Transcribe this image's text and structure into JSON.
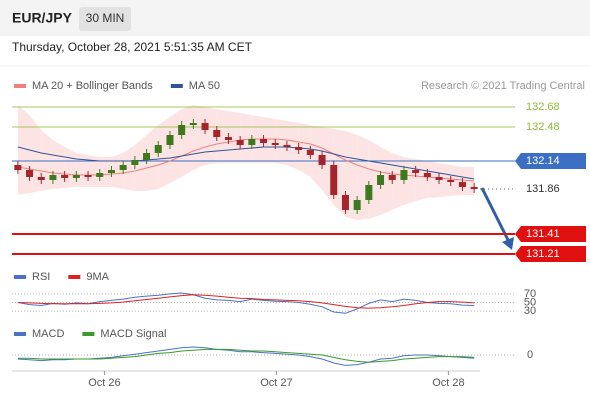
{
  "header": {
    "symbol": "EUR/JPY",
    "timeframe": "30 MIN",
    "datetime": "Thursday, October 28, 2021 5:51:35 AM CET",
    "source": "Research © 2021 Trading Central"
  },
  "chart_data": [
    {
      "type": "candlestick",
      "up_color": "#3d7a1e",
      "down_color": "#a4262c",
      "open": [
        132.1,
        132.05,
        131.98,
        131.95,
        132.0,
        131.97,
        132.0,
        131.98,
        132.02,
        132.05,
        132.1,
        132.15,
        132.22,
        132.3,
        132.4,
        132.5,
        132.52,
        132.45,
        132.38,
        132.35,
        132.3,
        132.36,
        132.32,
        132.3,
        132.28,
        132.25,
        132.2,
        132.1,
        131.8,
        131.65,
        131.75,
        131.9,
        132.0,
        131.95,
        132.05,
        132.02,
        131.98,
        131.95,
        131.93,
        131.88
      ],
      "high": [
        132.14,
        132.09,
        132.02,
        132.04,
        132.04,
        132.04,
        132.04,
        132.06,
        132.09,
        132.14,
        132.19,
        132.26,
        132.34,
        132.44,
        132.54,
        132.56,
        132.56,
        132.49,
        132.42,
        132.39,
        132.4,
        132.4,
        132.36,
        132.34,
        132.32,
        132.29,
        132.24,
        132.14,
        131.84,
        131.79,
        131.94,
        132.04,
        132.04,
        132.09,
        132.09,
        132.06,
        132.02,
        131.99,
        131.97,
        131.92
      ],
      "low": [
        132.01,
        131.94,
        131.91,
        131.91,
        131.93,
        131.93,
        131.94,
        131.94,
        131.98,
        132.01,
        132.06,
        132.11,
        132.18,
        132.26,
        132.36,
        132.46,
        132.41,
        132.34,
        132.31,
        132.26,
        132.26,
        132.28,
        132.26,
        132.24,
        132.21,
        132.16,
        132.06,
        131.76,
        131.61,
        131.61,
        131.71,
        131.86,
        131.91,
        131.91,
        131.98,
        131.94,
        131.91,
        131.89,
        131.84,
        131.82
      ],
      "close": [
        132.05,
        131.98,
        131.95,
        132.0,
        131.97,
        132.0,
        131.98,
        132.02,
        132.05,
        132.1,
        132.15,
        132.22,
        132.3,
        132.4,
        132.5,
        132.52,
        132.45,
        132.38,
        132.35,
        132.3,
        132.36,
        132.32,
        132.3,
        132.28,
        132.25,
        132.2,
        132.1,
        131.8,
        131.65,
        131.75,
        131.9,
        132.0,
        131.95,
        132.05,
        132.02,
        131.98,
        131.95,
        131.93,
        131.88,
        131.86
      ],
      "series": [
        {
          "name": "MA 20 + Bollinger Bands",
          "color": "#f08080",
          "band_color": "#fcd9d9",
          "values": [
            132.08,
            132.06,
            132.04,
            132.02,
            132.01,
            132.0,
            132.0,
            132.0,
            132.01,
            132.02,
            132.04,
            132.07,
            132.1,
            132.14,
            132.19,
            132.24,
            132.28,
            132.31,
            132.33,
            132.35,
            132.36,
            132.36,
            132.36,
            132.35,
            132.33,
            132.31,
            132.27,
            132.21,
            132.15,
            132.1,
            132.06,
            132.03,
            132.01,
            132.0,
            131.99,
            131.98,
            131.97,
            131.96,
            131.95,
            131.94
          ],
          "upper": [
            132.7,
            132.6,
            132.45,
            132.35,
            132.28,
            132.22,
            132.2,
            132.18,
            132.18,
            132.22,
            132.3,
            132.4,
            132.5,
            132.58,
            132.66,
            132.7,
            132.68,
            132.66,
            132.64,
            132.62,
            132.6,
            132.58,
            132.56,
            132.54,
            132.52,
            132.5,
            132.48,
            132.46,
            132.44,
            132.4,
            132.35,
            132.28,
            132.22,
            132.18,
            132.16,
            132.14,
            132.12,
            132.1,
            132.08,
            132.08
          ],
          "lower": [
            131.8,
            131.82,
            131.84,
            131.86,
            131.87,
            131.88,
            131.88,
            131.88,
            131.88,
            131.86,
            131.84,
            131.84,
            131.86,
            131.92,
            131.98,
            132.05,
            132.1,
            132.12,
            132.12,
            132.12,
            132.12,
            132.12,
            132.12,
            132.1,
            132.05,
            131.98,
            131.85,
            131.7,
            131.58,
            131.55,
            131.56,
            131.6,
            131.65,
            131.7,
            131.74,
            131.77,
            131.78,
            131.79,
            131.8,
            131.8
          ]
        },
        {
          "name": "MA 50",
          "color": "#2f5597",
          "values": [
            132.28,
            132.25,
            132.22,
            132.2,
            132.18,
            132.16,
            132.15,
            132.14,
            132.14,
            132.14,
            132.14,
            132.15,
            132.16,
            132.17,
            132.19,
            132.21,
            132.23,
            132.24,
            132.25,
            132.26,
            132.27,
            132.28,
            132.28,
            132.28,
            132.27,
            132.26,
            132.24,
            132.21,
            132.18,
            132.16,
            132.14,
            132.12,
            132.1,
            132.08,
            132.06,
            132.04,
            132.02,
            132.0,
            131.98,
            131.96
          ]
        }
      ],
      "levels": [
        {
          "value": 132.68,
          "color": "#8fbc3a",
          "boxed": false
        },
        {
          "value": 132.48,
          "color": "#8fbc3a",
          "boxed": false
        },
        {
          "value": 132.14,
          "color": "#3a6fc4",
          "boxed": true
        },
        {
          "value": 131.86,
          "color": "#333333",
          "boxed": false,
          "dash": true
        },
        {
          "value": 131.41,
          "color": "#e01010",
          "boxed": true
        },
        {
          "value": 131.21,
          "color": "#e01010",
          "boxed": true
        }
      ],
      "ylim": [
        131.1,
        132.8
      ]
    },
    {
      "type": "line",
      "ylim": [
        0,
        100
      ],
      "yticks": [
        70,
        50,
        30
      ],
      "series": [
        {
          "name": "RSI",
          "color": "#4a72c8",
          "values": [
            50,
            45,
            43,
            48,
            46,
            49,
            47,
            52,
            55,
            58,
            62,
            65,
            67,
            70,
            72,
            68,
            60,
            56,
            55,
            52,
            58,
            55,
            53,
            52,
            50,
            46,
            40,
            28,
            25,
            35,
            48,
            56,
            52,
            58,
            55,
            50,
            48,
            47,
            44,
            43
          ]
        },
        {
          "name": "9MA",
          "color": "#e02020",
          "values": [
            50,
            49,
            48,
            47,
            47,
            47,
            47,
            48,
            49,
            51,
            54,
            57,
            60,
            63,
            66,
            68,
            67,
            65,
            62,
            60,
            59,
            57,
            56,
            55,
            54,
            52,
            49,
            45,
            41,
            38,
            37,
            38,
            40,
            43,
            47,
            50,
            52,
            52,
            51,
            49
          ]
        }
      ]
    },
    {
      "type": "line",
      "ylim": [
        -0.2,
        0.2
      ],
      "yticks": [
        0
      ],
      "series": [
        {
          "name": "MACD",
          "color": "#4a72c8",
          "values": [
            -0.05,
            -0.06,
            -0.07,
            -0.06,
            -0.06,
            -0.05,
            -0.05,
            -0.04,
            -0.03,
            -0.01,
            0.01,
            0.03,
            0.05,
            0.07,
            0.09,
            0.1,
            0.09,
            0.07,
            0.06,
            0.04,
            0.04,
            0.03,
            0.02,
            0.01,
            0,
            -0.02,
            -0.05,
            -0.1,
            -0.13,
            -0.12,
            -0.09,
            -0.05,
            -0.04,
            -0.01,
            0,
            0,
            -0.01,
            -0.02,
            -0.03,
            -0.04
          ]
        },
        {
          "name": "MACD Signal",
          "color": "#3a9a2a",
          "values": [
            -0.04,
            -0.04,
            -0.05,
            -0.05,
            -0.05,
            -0.05,
            -0.05,
            -0.05,
            -0.04,
            -0.03,
            -0.02,
            0,
            0.02,
            0.03,
            0.05,
            0.06,
            0.07,
            0.07,
            0.07,
            0.06,
            0.05,
            0.05,
            0.04,
            0.03,
            0.02,
            0.01,
            0,
            -0.03,
            -0.06,
            -0.08,
            -0.09,
            -0.08,
            -0.07,
            -0.05,
            -0.04,
            -0.03,
            -0.02,
            -0.02,
            -0.02,
            -0.03
          ]
        }
      ],
      "xlim": [
        0,
        40
      ],
      "xticks": [
        {
          "value": 7.9,
          "label": "Oct 26"
        },
        {
          "value": 22.6,
          "label": "Oct 27"
        },
        {
          "value": 37.3,
          "label": "Oct 28"
        }
      ]
    }
  ]
}
